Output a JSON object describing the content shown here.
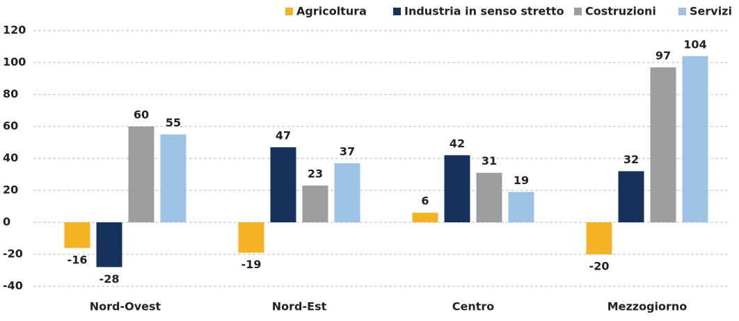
{
  "chart_data": {
    "type": "bar",
    "categories": [
      "Nord-Ovest",
      "Nord-Est",
      "Centro",
      "Mezzogiorno"
    ],
    "series": [
      {
        "name": "Agricoltura",
        "color": "#f5b323",
        "values": [
          -16,
          -19,
          6,
          -20
        ]
      },
      {
        "name": "Industria in senso stretto",
        "color": "#16325c",
        "values": [
          -28,
          47,
          42,
          32
        ]
      },
      {
        "name": "Costruzioni",
        "color": "#9d9d9d",
        "values": [
          60,
          23,
          31,
          97
        ]
      },
      {
        "name": "Servizi",
        "color": "#9dc3e6",
        "values": [
          55,
          37,
          19,
          104
        ]
      }
    ],
    "ylim": [
      -40,
      120
    ],
    "yticks": [
      -40,
      -20,
      0,
      20,
      40,
      60,
      80,
      100,
      120
    ],
    "grid": true,
    "legend": "top"
  }
}
